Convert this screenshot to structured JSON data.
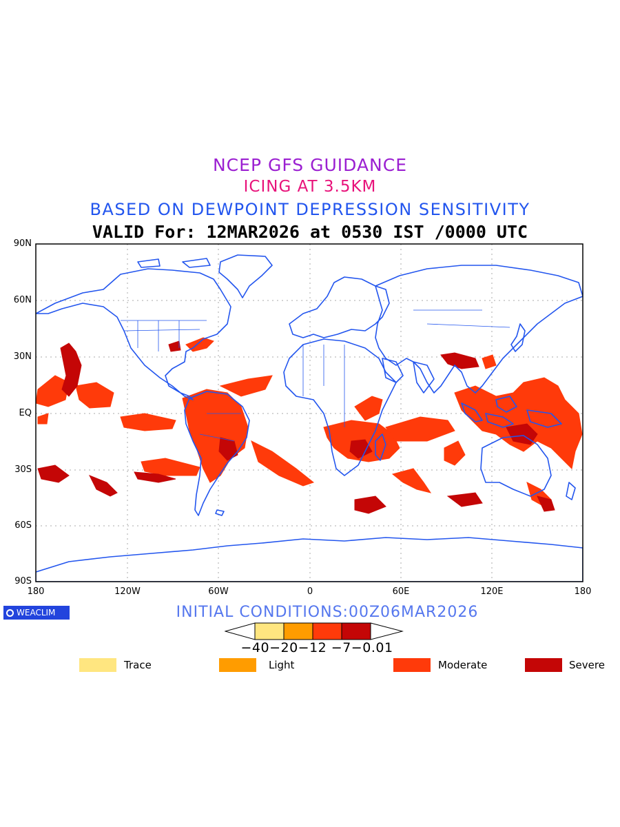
{
  "titles": {
    "line1": "NCEP GFS GUIDANCE",
    "line2": "ICING AT 3.5KM",
    "line3": "BASED ON DEWPOINT DEPRESSION SENSITIVITY",
    "line4": "VALID For: 12MAR2026 at 0530 IST /0000 UTC"
  },
  "axes": {
    "y_labels": [
      "90N",
      "60N",
      "30N",
      "EQ",
      "30S",
      "60S",
      "90S"
    ],
    "x_labels": [
      "180",
      "120W",
      "60W",
      "0",
      "60E",
      "120E",
      "180"
    ]
  },
  "badge": {
    "text": "WEACLIM"
  },
  "initial_conditions": "INITIAL CONDITIONS:00Z06MAR2026",
  "colorbar": {
    "labels_text": "−40−20−12 −7−0.01",
    "colors": [
      "#ffe680",
      "#ff9c00",
      "#ff3a0a",
      "#c40606"
    ]
  },
  "legend": [
    {
      "label": "Trace",
      "color": "#ffe680"
    },
    {
      "label": "Light",
      "color": "#ff9c00"
    },
    {
      "label": "Moderate",
      "color": "#ff3a0a"
    },
    {
      "label": "Severe",
      "color": "#c40606"
    }
  ],
  "colors": {
    "coast": "#2255ee",
    "grid": "#aaaaaa",
    "moderate": "#ff3a0a",
    "severe": "#c40606"
  }
}
